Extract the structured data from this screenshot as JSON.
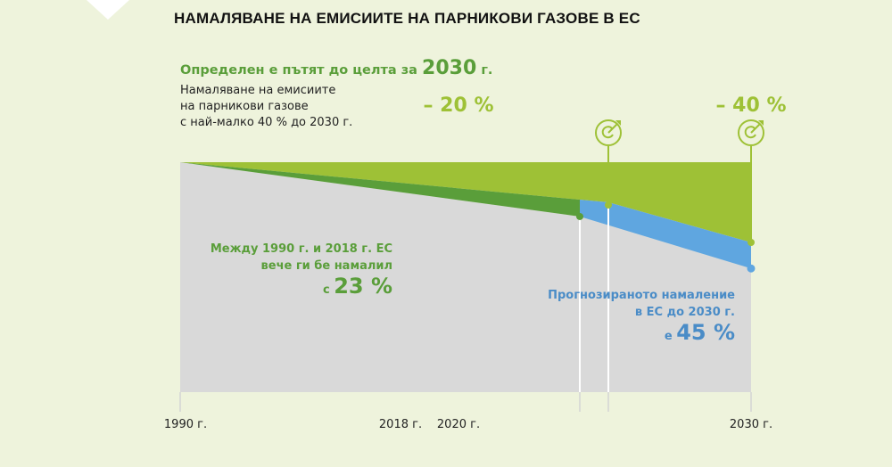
{
  "title": "НАМАЛЯВАНЕ НА ЕМИСИИТЕ НА ПАРНИКОВИ ГАЗОВЕ В ЕС",
  "heading": {
    "prefix": "Определен е пътят до целта за",
    "year": "2030",
    "suffix": "г."
  },
  "subtitle_lines": [
    "Намаляване на емисиите",
    "на парникови газове",
    "с най-малко 40 % до 2030 г."
  ],
  "annotations": {
    "actual": {
      "line1": "Между 1990 г. и 2018 г. ЕС",
      "line2": "вече ги бе намалил",
      "prefix": "с",
      "value": "23 %"
    },
    "projected": {
      "line1": "Прогнозираното намаление",
      "line2": "в ЕС до 2030 г.",
      "prefix": "е",
      "value": "45 %"
    }
  },
  "targets": [
    {
      "label": "– 20 %",
      "year": 2020,
      "icon": "target-arrow-icon"
    },
    {
      "label": "– 40 %",
      "year": 2030,
      "icon": "target-arrow-icon"
    }
  ],
  "colors": {
    "background": "#eef3dc",
    "target_area": "#9ec136",
    "achieved_area": "#5a9e3a",
    "projected_area": "#5fa6e0",
    "remaining_emissions": "#d9d9d9",
    "projected_text": "#4a8cc7"
  },
  "chart_data": {
    "type": "area",
    "x_ticks": [
      "1990 г.",
      "2018 г.",
      "2020 г.",
      "2030 г."
    ],
    "x_tick_years": [
      1990,
      2018,
      2020,
      2030
    ],
    "target_path": [
      {
        "year": 1990,
        "value": 0
      },
      {
        "year": 2020,
        "value": -20
      },
      {
        "year": 2030,
        "value": -40
      }
    ],
    "actual": [
      {
        "year": 1990,
        "value": 0
      },
      {
        "year": 2018,
        "value": -23
      }
    ],
    "projected": [
      {
        "year": 2018,
        "value": -23
      },
      {
        "year": 2030,
        "value": -45
      }
    ],
    "unit": "%"
  }
}
